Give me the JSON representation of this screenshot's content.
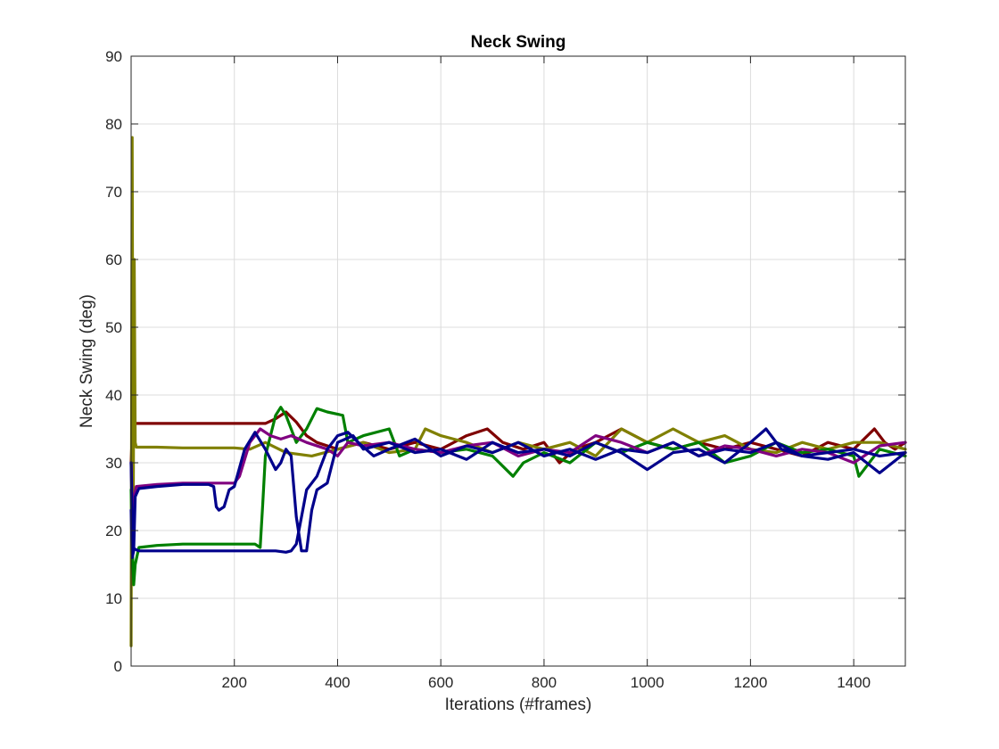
{
  "chart_data": {
    "type": "line",
    "title": "Neck Swing",
    "xlabel": "Iterations (#frames)",
    "ylabel": "Neck Swing (deg)",
    "xlim": [
      0,
      1500
    ],
    "ylim": [
      0,
      90
    ],
    "xticks": [
      200,
      400,
      600,
      800,
      1000,
      1200,
      1400
    ],
    "yticks": [
      0,
      10,
      20,
      30,
      40,
      50,
      60,
      70,
      80,
      90
    ],
    "grid": true,
    "legend": "none",
    "series": [
      {
        "color": "#7f0000",
        "x": [
          0,
          3,
          10,
          50,
          100,
          150,
          200,
          240,
          260,
          280,
          300,
          320,
          340,
          360,
          400,
          450,
          500,
          550,
          600,
          650,
          690,
          720,
          760,
          800,
          830,
          860,
          900,
          950,
          1000,
          1050,
          1100,
          1150,
          1200,
          1250,
          1300,
          1350,
          1400,
          1440,
          1460,
          1480,
          1500
        ],
        "y": [
          30,
          36,
          35.8,
          35.8,
          35.8,
          35.8,
          35.8,
          35.8,
          35.8,
          36.5,
          37.5,
          36,
          34,
          33,
          32,
          33,
          32,
          33,
          32,
          34,
          35,
          33,
          32,
          33,
          30,
          32,
          33,
          35,
          33,
          32,
          33,
          32,
          33,
          32,
          31,
          33,
          32,
          35,
          33,
          32,
          33
        ]
      },
      {
        "color": "#808000",
        "x": [
          0,
          2,
          4,
          6,
          8,
          10,
          50,
          100,
          150,
          200,
          230,
          260,
          300,
          350,
          400,
          450,
          500,
          550,
          570,
          600,
          650,
          700,
          750,
          800,
          850,
          900,
          950,
          1000,
          1050,
          1100,
          1150,
          1200,
          1250,
          1300,
          1350,
          1400,
          1450,
          1500
        ],
        "y": [
          3,
          78,
          20,
          60,
          33,
          32.3,
          32.3,
          32.2,
          32.2,
          32.2,
          32,
          33,
          31.5,
          31,
          32,
          33,
          31.5,
          32,
          35,
          34,
          33,
          31.5,
          33,
          32,
          33,
          31,
          35,
          33,
          35,
          33,
          34,
          32,
          31.5,
          33,
          32,
          33,
          33,
          32
        ]
      },
      {
        "color": "#008000",
        "x": [
          0,
          2,
          5,
          8,
          15,
          50,
          100,
          150,
          200,
          240,
          250,
          255,
          260,
          280,
          290,
          300,
          320,
          340,
          360,
          380,
          410,
          420,
          450,
          500,
          520,
          550,
          600,
          650,
          700,
          740,
          760,
          800,
          850,
          900,
          950,
          1000,
          1050,
          1100,
          1150,
          1200,
          1250,
          1300,
          1350,
          1400,
          1410,
          1450,
          1500
        ],
        "y": [
          26,
          18,
          12,
          15,
          17.5,
          17.8,
          18,
          18,
          18,
          18,
          17.5,
          24,
          31,
          37,
          38.2,
          37,
          33,
          35,
          38,
          37.5,
          37,
          33,
          34,
          35,
          31,
          32,
          31.5,
          32,
          31,
          28,
          30,
          31.5,
          30,
          33,
          31.5,
          33,
          32,
          33,
          30,
          31,
          33,
          31.5,
          32,
          31,
          28,
          32,
          31
        ]
      },
      {
        "color": "#800080",
        "x": [
          0,
          3,
          6,
          10,
          50,
          100,
          150,
          200,
          210,
          230,
          250,
          270,
          290,
          310,
          340,
          380,
          400,
          420,
          450,
          500,
          550,
          600,
          650,
          700,
          750,
          800,
          850,
          900,
          950,
          1000,
          1050,
          1100,
          1150,
          1200,
          1250,
          1300,
          1350,
          1400,
          1450,
          1500
        ],
        "y": [
          30,
          22,
          25,
          26.5,
          26.8,
          27,
          27,
          27,
          28,
          33,
          35,
          34,
          33.5,
          34,
          33,
          32,
          31,
          33,
          32.5,
          33,
          32,
          31.5,
          32.5,
          33,
          31,
          32,
          31.5,
          34,
          33,
          31.5,
          33,
          31,
          32.5,
          32,
          31,
          32,
          31.5,
          30,
          32.5,
          33
        ]
      },
      {
        "color": "#00008b",
        "x": [
          0,
          2,
          5,
          8,
          15,
          50,
          100,
          150,
          160,
          165,
          170,
          180,
          190,
          200,
          220,
          240,
          260,
          280,
          290,
          300,
          310,
          320,
          330,
          340,
          350,
          360,
          380,
          400,
          430,
          450,
          500,
          550,
          600,
          650,
          700,
          750,
          800,
          850,
          900,
          950,
          1000,
          1050,
          1100,
          1150,
          1200,
          1230,
          1260,
          1300,
          1350,
          1400,
          1450,
          1500
        ],
        "y": [
          23,
          16,
          17,
          25,
          26.2,
          26.5,
          26.8,
          26.8,
          26.5,
          23.5,
          23,
          23.5,
          26,
          26.5,
          32,
          34.5,
          32,
          29,
          30,
          32,
          31,
          22,
          17,
          17,
          23,
          26,
          27,
          33,
          34,
          32,
          33,
          31.5,
          32,
          30.5,
          33,
          31.5,
          32,
          31,
          33,
          31.5,
          29,
          31.5,
          32,
          30,
          33,
          35,
          32,
          31,
          30.5,
          31.5,
          28.5,
          31.5
        ]
      },
      {
        "color": "#00008b",
        "x": [
          0,
          3,
          6,
          15,
          50,
          100,
          150,
          200,
          250,
          280,
          300,
          310,
          320,
          330,
          340,
          350,
          360,
          380,
          400,
          420,
          440,
          470,
          500,
          550,
          600,
          650,
          700,
          750,
          800,
          850,
          900,
          950,
          1000,
          1050,
          1100,
          1150,
          1200,
          1250,
          1300,
          1350,
          1400,
          1450,
          1500
        ],
        "y": [
          30,
          17,
          17.3,
          17,
          17,
          17,
          17,
          17,
          17,
          17,
          16.8,
          17,
          18,
          22,
          26,
          27,
          28,
          32,
          34,
          34.5,
          33,
          31,
          32,
          33.5,
          31,
          32.5,
          31.5,
          33,
          31,
          32,
          30.5,
          32,
          31.5,
          33,
          31,
          32,
          31.5,
          33,
          31,
          31.5,
          32,
          31,
          31.5
        ]
      }
    ]
  }
}
